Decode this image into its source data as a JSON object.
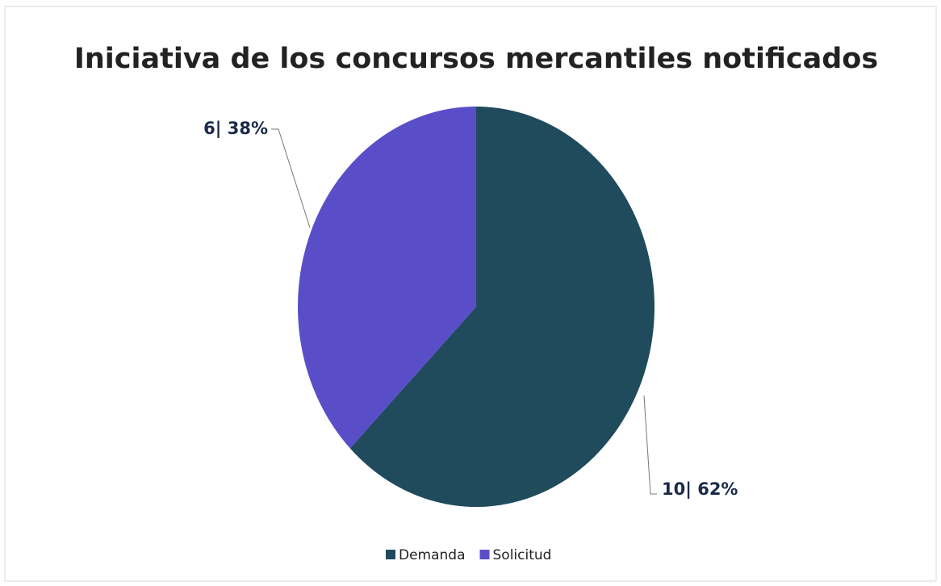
{
  "chart_data": {
    "type": "pie",
    "title": "Iniciativa de los concursos mercantiles notificados",
    "categories": [
      "Demanda",
      "Solicitud"
    ],
    "values": [
      10,
      6
    ],
    "value_labels": [
      "10| 62%",
      "6| 38%"
    ],
    "colors": [
      "#1f4b5c",
      "#5a4ec8"
    ],
    "legend": "bottom"
  }
}
